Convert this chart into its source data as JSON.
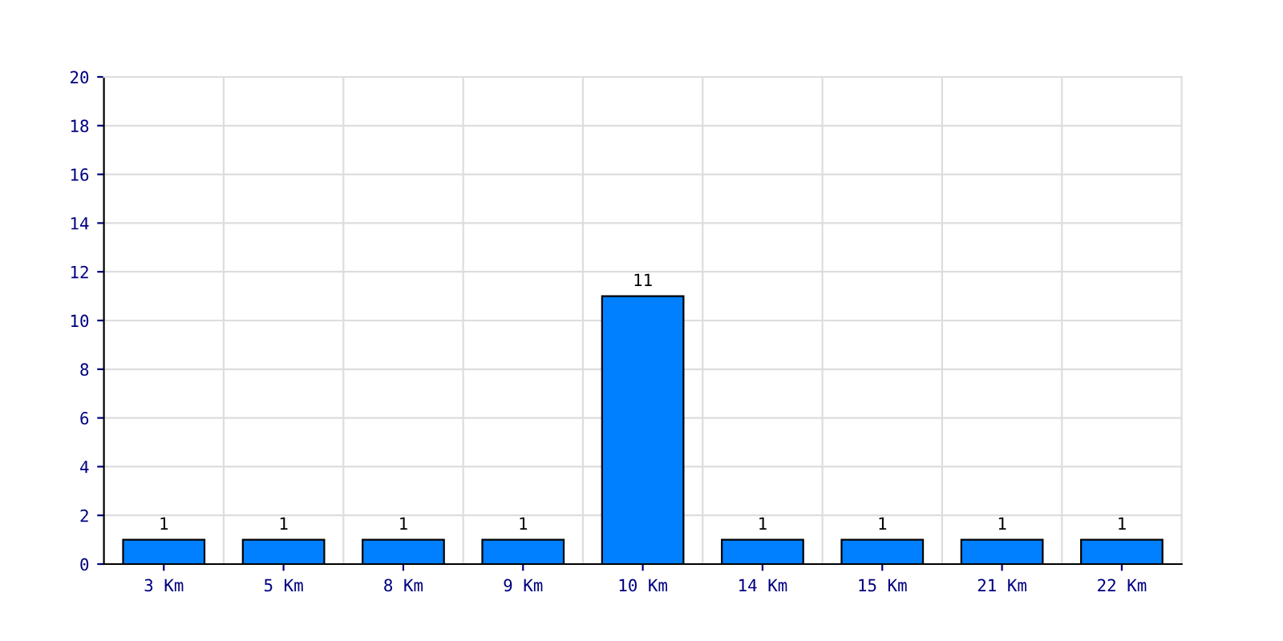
{
  "chart_data": {
    "type": "bar",
    "categories": [
      "3 Km",
      "5 Km",
      "8 Km",
      "9 Km",
      "10 Km",
      "14 Km",
      "15 Km",
      "21 Km",
      "22 Km"
    ],
    "values": [
      1,
      1,
      1,
      1,
      11,
      1,
      1,
      1,
      1
    ],
    "color": "#0080ff",
    "ylim": [
      0,
      20
    ],
    "yticks": [
      0,
      2,
      4,
      6,
      8,
      10,
      12,
      14,
      16,
      18,
      20
    ],
    "grid": true,
    "data_labels": true
  }
}
